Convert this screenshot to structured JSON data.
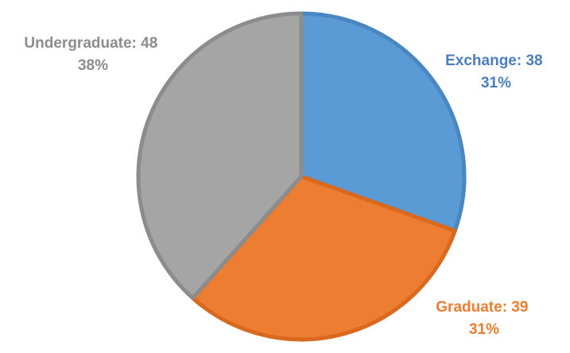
{
  "chart_data": {
    "type": "pie",
    "title": "",
    "legend": "none",
    "slices": [
      {
        "name": "Exchange",
        "value": 38,
        "percent": "31%",
        "color": "#5B9BD5",
        "border": "#4A86C0",
        "text_color": "#4A7EC0"
      },
      {
        "name": "Graduate",
        "value": 39,
        "percent": "31%",
        "color": "#ED7D31",
        "border": "#D9691F",
        "text_color": "#ED7D31"
      },
      {
        "name": "Undergraduate",
        "value": 48,
        "percent": "38%",
        "color": "#A5A5A5",
        "border": "#8C8C8C",
        "text_color": "#8C8C8C"
      }
    ],
    "start_angle": "12 o'clock",
    "direction": "clockwise"
  },
  "labels": [
    {
      "line1": "Exchange: 38",
      "line2": "31%"
    },
    {
      "line1": "Graduate: 39",
      "line2": "31%"
    },
    {
      "line1": "Undergraduate: 48",
      "line2": "38%"
    }
  ]
}
